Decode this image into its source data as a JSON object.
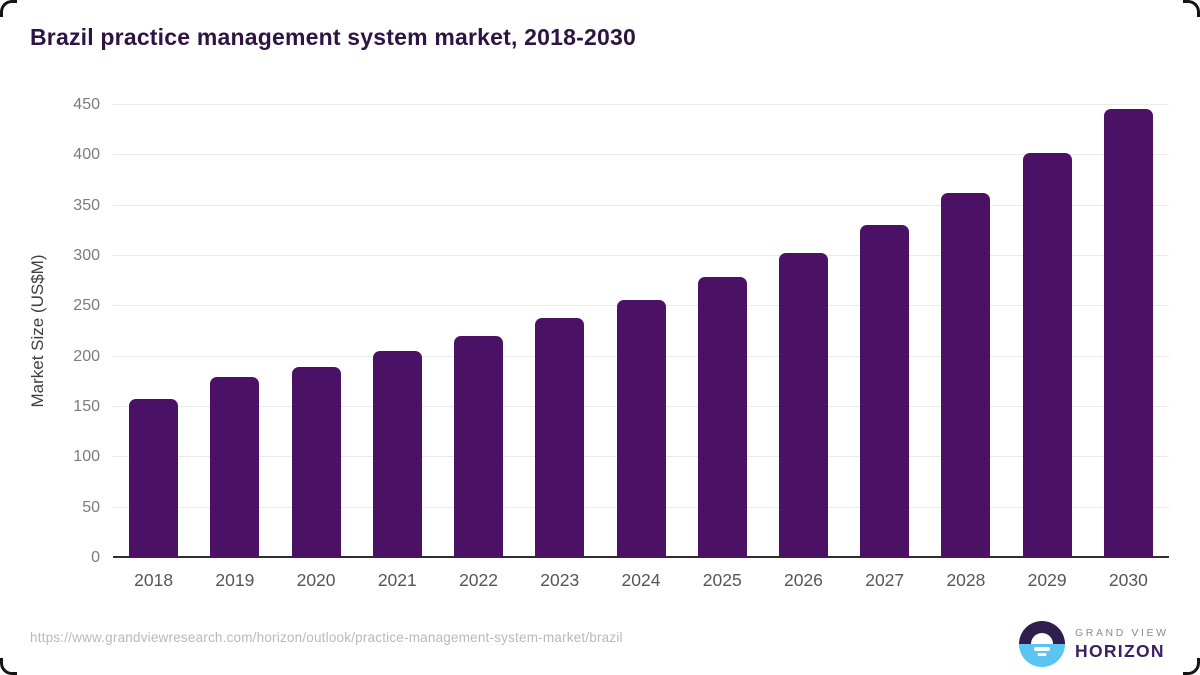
{
  "title": "Brazil practice management system market, 2018-2030",
  "chart_data": {
    "type": "bar",
    "title": "Brazil practice management system market, 2018-2030",
    "categories": [
      "2018",
      "2019",
      "2020",
      "2021",
      "2022",
      "2023",
      "2024",
      "2025",
      "2026",
      "2027",
      "2028",
      "2029",
      "2030"
    ],
    "values": [
      157,
      179,
      189,
      205,
      220,
      237,
      255,
      278,
      302,
      330,
      362,
      401,
      445
    ],
    "xlabel": "",
    "ylabel": "Market Size (US$M)",
    "ylim": [
      0,
      450
    ],
    "yticks": [
      0,
      50,
      100,
      150,
      200,
      250,
      300,
      350,
      400,
      450
    ],
    "grid": true,
    "legend": "none",
    "bar_color": "#4a1164"
  },
  "footer": {
    "source_url": "https://www.grandviewresearch.com/horizon/outlook/practice-management-system-market/brazil",
    "logo": {
      "line1": "GRAND VIEW",
      "line2": "HORIZON",
      "icon": "horizon-sunset-icon"
    }
  },
  "colors": {
    "title_text": "#2d1443",
    "bar": "#4a1164",
    "gridline": "#e9e9e9",
    "axis_line": "#2f2f2f",
    "y_tick_text": "#7b7b7b",
    "x_tick_text": "#565656",
    "footer_text": "#b9b9b9",
    "logo_purple": "#2f1d4e",
    "logo_blue": "#59c5f0"
  }
}
